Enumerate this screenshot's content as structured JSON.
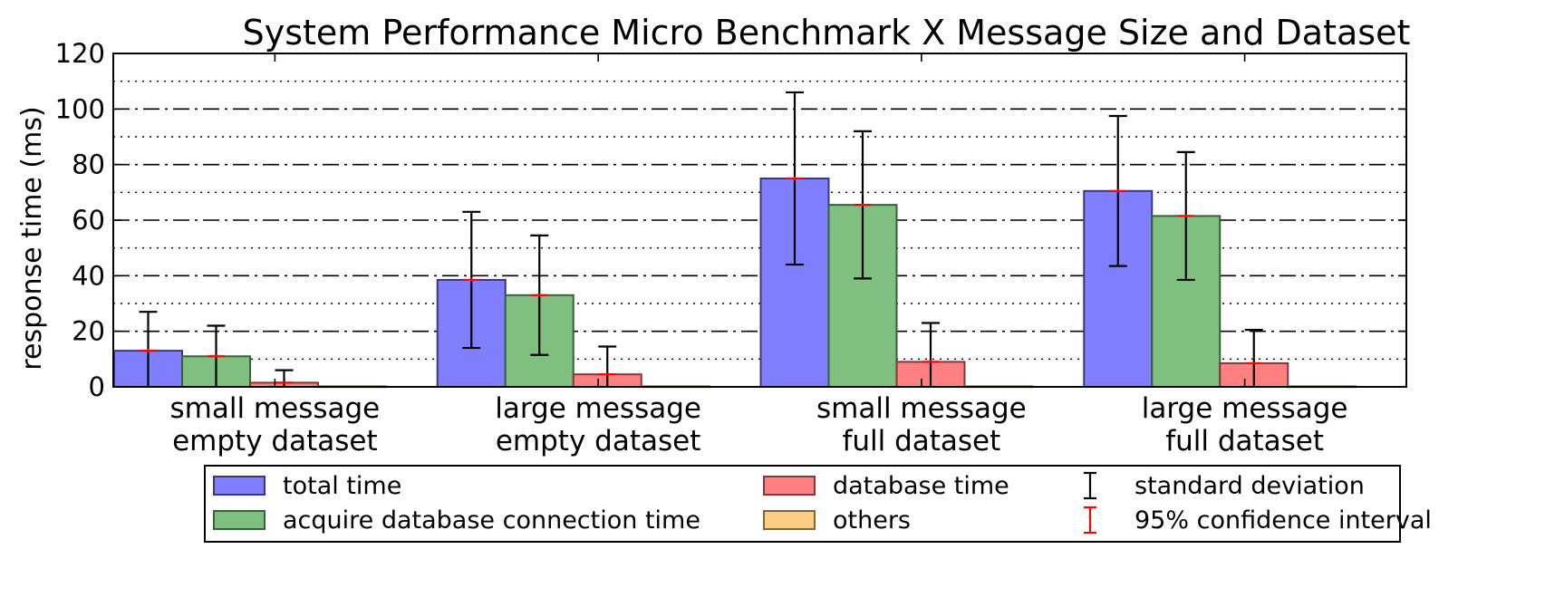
{
  "chart_data": {
    "type": "bar",
    "title": "System Performance Micro Benchmark X Message Size and Dataset",
    "xlabel": "",
    "ylabel": "response time (ms)",
    "ylim": [
      0,
      120
    ],
    "yticks": [
      0,
      20,
      40,
      60,
      80,
      100,
      120
    ],
    "grid": {
      "major": "dash-dot",
      "minor": "dotted"
    },
    "legend_placement": "bottom",
    "categories": [
      [
        "small message",
        "empty dataset"
      ],
      [
        "large message",
        "empty dataset"
      ],
      [
        "small message",
        "full dataset"
      ],
      [
        "large message",
        "full dataset"
      ]
    ],
    "series": [
      {
        "name": "total time",
        "color": "#8080ff",
        "edge": "#3a3a70",
        "values": [
          13,
          38.5,
          75,
          70.5
        ],
        "std": [
          14,
          24.5,
          31,
          27
        ],
        "ci95": [
          0.6,
          0.6,
          0.6,
          0.6
        ]
      },
      {
        "name": "acquire database connection time",
        "color": "#7fbf7f",
        "edge": "#3a603a",
        "values": [
          11,
          33,
          65.5,
          61.5
        ],
        "std": [
          11,
          21.5,
          26.5,
          23
        ],
        "ci95": [
          0.5,
          0.5,
          0.5,
          0.5
        ]
      },
      {
        "name": "database time",
        "color": "#ff8080",
        "edge": "#7a3a3a",
        "values": [
          1.5,
          4.5,
          9,
          8.5
        ],
        "std": [
          4.5,
          10,
          14,
          12
        ],
        "ci95": [
          0.3,
          0.3,
          0.3,
          0.3
        ]
      },
      {
        "name": "others",
        "color": "#ffcc80",
        "edge": "#7a6a3a",
        "values": [
          0.2,
          0.2,
          0.2,
          0.2
        ],
        "std": [
          0,
          0,
          0,
          0
        ],
        "ci95": [
          0,
          0,
          0,
          0
        ]
      }
    ],
    "legend_extra": [
      {
        "name": "standard deviation",
        "color": "#000000"
      },
      {
        "name": "95% confidence interval",
        "color": "#ff0000"
      }
    ]
  }
}
